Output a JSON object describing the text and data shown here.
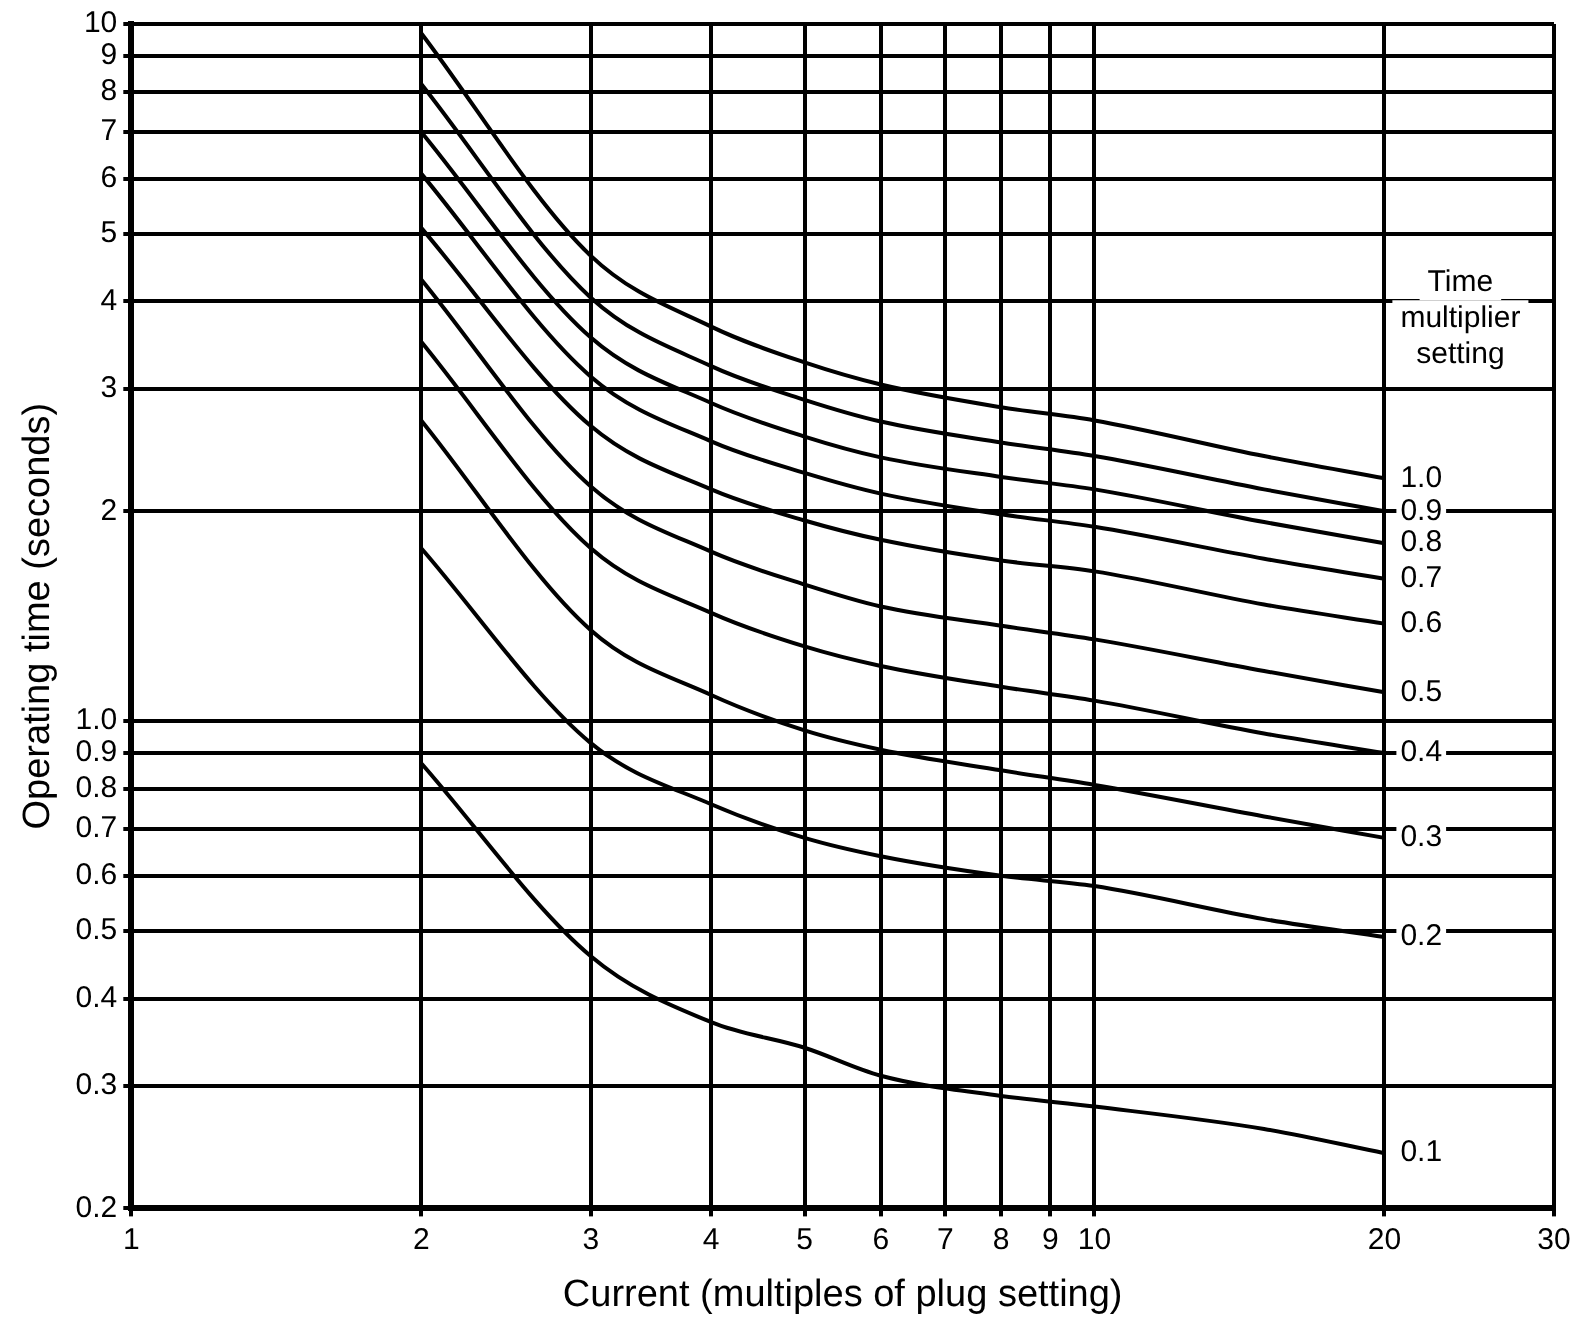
{
  "chart_data": {
    "type": "line",
    "xlabel": "Current (multiples of plug setting)",
    "ylabel": "Operating time (seconds)",
    "legend_title": "Time multiplier setting",
    "x": [
      2,
      3,
      4,
      5,
      6,
      8,
      10,
      15,
      20
    ],
    "series": [
      {
        "name": "1.0",
        "color": "#000000",
        "values": [
          9.7,
          4.65,
          3.68,
          3.27,
          3.04,
          2.82,
          2.7,
          2.4,
          2.23
        ]
      },
      {
        "name": "0.9",
        "color": "#000000",
        "values": [
          8.2,
          4.05,
          3.23,
          2.89,
          2.69,
          2.51,
          2.4,
          2.15,
          2.0
        ]
      },
      {
        "name": "0.8",
        "color": "#000000",
        "values": [
          7.0,
          3.55,
          2.86,
          2.56,
          2.39,
          2.24,
          2.15,
          1.93,
          1.8
        ]
      },
      {
        "name": "0.7",
        "color": "#000000",
        "values": [
          6.1,
          3.12,
          2.52,
          2.27,
          2.12,
          1.98,
          1.9,
          1.71,
          1.6
        ]
      },
      {
        "name": "0.6",
        "color": "#000000",
        "values": [
          5.1,
          2.65,
          2.15,
          1.94,
          1.82,
          1.7,
          1.64,
          1.47,
          1.38
        ]
      },
      {
        "name": "0.5",
        "color": "#000000",
        "values": [
          4.3,
          2.17,
          1.75,
          1.57,
          1.46,
          1.37,
          1.31,
          1.18,
          1.1
        ]
      },
      {
        "name": "0.4",
        "color": "#000000",
        "values": [
          3.5,
          1.77,
          1.43,
          1.28,
          1.2,
          1.12,
          1.07,
          0.96,
          0.9
        ]
      },
      {
        "name": "0.3",
        "color": "#000000",
        "values": [
          2.7,
          1.35,
          1.09,
          0.97,
          0.91,
          0.85,
          0.81,
          0.73,
          0.68
        ]
      },
      {
        "name": "0.2",
        "color": "#000000",
        "values": [
          1.77,
          0.93,
          0.76,
          0.68,
          0.64,
          0.6,
          0.58,
          0.52,
          0.49
        ]
      },
      {
        "name": "0.1",
        "color": "#000000",
        "values": [
          0.87,
          0.46,
          0.37,
          0.34,
          0.31,
          0.29,
          0.28,
          0.26,
          0.24
        ]
      }
    ],
    "log": "xy",
    "xlim": [
      1,
      30
    ],
    "ylim": [
      0.2,
      10
    ],
    "xticks": [
      1,
      2,
      3,
      4,
      5,
      6,
      7,
      8,
      9,
      10,
      20,
      30
    ],
    "yticks": [
      0.2,
      0.3,
      0.4,
      0.5,
      0.6,
      0.7,
      0.8,
      0.9,
      {
        "value": 1,
        "label": "1.0"
      },
      2,
      3,
      4,
      5,
      6,
      7,
      8,
      9,
      10
    ],
    "grid": true,
    "legend": false,
    "marker": "none",
    "line_style": "solid"
  }
}
